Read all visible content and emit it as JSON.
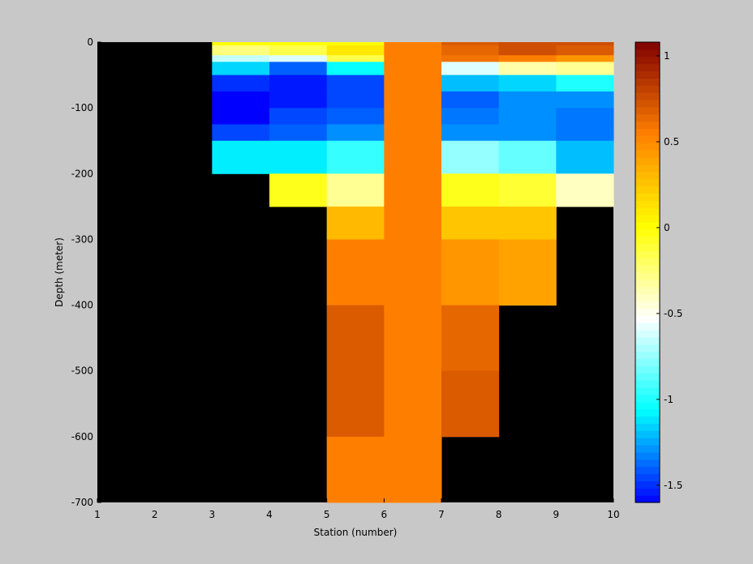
{
  "chart_data": {
    "type": "heatmap",
    "xlabel": "Station (number)",
    "ylabel": "Depth (meter)",
    "xlim": [
      1,
      10
    ],
    "ylim": [
      -700,
      0
    ],
    "x_ticks": [
      1,
      2,
      3,
      4,
      5,
      6,
      7,
      8,
      9,
      10
    ],
    "y_ticks": [
      0,
      -100,
      -200,
      -300,
      -400,
      -500,
      -600,
      -700
    ],
    "background": "#000000",
    "colorbar": {
      "range": [
        -1.6,
        1.08
      ],
      "ticks": [
        1,
        0.5,
        0,
        -0.5,
        -1,
        -1.5
      ],
      "colormap": [
        "#0000ff",
        "#00ffff",
        "#ffffff",
        "#ffff00",
        "#ff8000",
        "#800000"
      ]
    },
    "cells": [
      {
        "x0": 3,
        "x1": 4,
        "y0": 0,
        "y1": -5,
        "value": 0
      },
      {
        "x0": 3,
        "x1": 4,
        "y0": -5,
        "y1": -20,
        "value": -0.25
      },
      {
        "x0": 3,
        "x1": 4,
        "y0": -20,
        "y1": -30,
        "value": -0.65
      },
      {
        "x0": 3,
        "x1": 4,
        "y0": -30,
        "y1": -50,
        "value": -1.15
      },
      {
        "x0": 3,
        "x1": 4,
        "y0": -50,
        "y1": -75,
        "value": -1.5
      },
      {
        "x0": 3,
        "x1": 4,
        "y0": -75,
        "y1": -100,
        "value": -1.6
      },
      {
        "x0": 3,
        "x1": 4,
        "y0": -100,
        "y1": -125,
        "value": -1.6
      },
      {
        "x0": 3,
        "x1": 4,
        "y0": -125,
        "y1": -150,
        "value": -1.45
      },
      {
        "x0": 3,
        "x1": 4,
        "y0": -150,
        "y1": -200,
        "value": -1.1
      },
      {
        "x0": 4,
        "x1": 5,
        "y0": 0,
        "y1": -5,
        "value": 0
      },
      {
        "x0": 4,
        "x1": 5,
        "y0": -5,
        "y1": -20,
        "value": -0.15
      },
      {
        "x0": 4,
        "x1": 5,
        "y0": -20,
        "y1": -30,
        "value": -0.6
      },
      {
        "x0": 4,
        "x1": 5,
        "y0": -30,
        "y1": -50,
        "value": -1.4
      },
      {
        "x0": 4,
        "x1": 5,
        "y0": -50,
        "y1": -75,
        "value": -1.55
      },
      {
        "x0": 4,
        "x1": 5,
        "y0": -75,
        "y1": -100,
        "value": -1.55
      },
      {
        "x0": 4,
        "x1": 5,
        "y0": -100,
        "y1": -125,
        "value": -1.45
      },
      {
        "x0": 4,
        "x1": 5,
        "y0": -125,
        "y1": -150,
        "value": -1.4
      },
      {
        "x0": 4,
        "x1": 5,
        "y0": -150,
        "y1": -200,
        "value": -1.1
      },
      {
        "x0": 4,
        "x1": 5,
        "y0": -200,
        "y1": -250,
        "value": -0.05
      },
      {
        "x0": 5,
        "x1": 6,
        "y0": 0,
        "y1": -5,
        "value": 0
      },
      {
        "x0": 5,
        "x1": 6,
        "y0": -5,
        "y1": -20,
        "value": 0.1
      },
      {
        "x0": 5,
        "x1": 6,
        "y0": -20,
        "y1": -30,
        "value": -0.15
      },
      {
        "x0": 5,
        "x1": 6,
        "y0": -30,
        "y1": -50,
        "value": -1.05
      },
      {
        "x0": 5,
        "x1": 6,
        "y0": -50,
        "y1": -75,
        "value": -1.45
      },
      {
        "x0": 5,
        "x1": 6,
        "y0": -75,
        "y1": -100,
        "value": -1.45
      },
      {
        "x0": 5,
        "x1": 6,
        "y0": -100,
        "y1": -125,
        "value": -1.4
      },
      {
        "x0": 5,
        "x1": 6,
        "y0": -125,
        "y1": -150,
        "value": -1.3
      },
      {
        "x0": 5,
        "x1": 6,
        "y0": -150,
        "y1": -200,
        "value": -0.95
      },
      {
        "x0": 5,
        "x1": 6,
        "y0": -200,
        "y1": -250,
        "value": -0.3
      },
      {
        "x0": 5,
        "x1": 6,
        "y0": -250,
        "y1": -300,
        "value": 0.3
      },
      {
        "x0": 5,
        "x1": 6,
        "y0": -300,
        "y1": -400,
        "value": 0.55
      },
      {
        "x0": 5,
        "x1": 6,
        "y0": -400,
        "y1": -600,
        "value": 0.7
      },
      {
        "x0": 5,
        "x1": 6,
        "y0": -600,
        "y1": -700,
        "value": 0.55
      },
      {
        "x0": 6,
        "x1": 7,
        "y0": 0,
        "y1": -700,
        "value": 0.55
      },
      {
        "x0": 7,
        "x1": 8,
        "y0": 0,
        "y1": -5,
        "value": 0.7
      },
      {
        "x0": 7,
        "x1": 8,
        "y0": -5,
        "y1": -20,
        "value": 0.65
      },
      {
        "x0": 7,
        "x1": 8,
        "y0": -20,
        "y1": -30,
        "value": 0.6
      },
      {
        "x0": 7,
        "x1": 8,
        "y0": -30,
        "y1": -50,
        "value": -0.6
      },
      {
        "x0": 7,
        "x1": 8,
        "y0": -50,
        "y1": -75,
        "value": -1.2
      },
      {
        "x0": 7,
        "x1": 8,
        "y0": -75,
        "y1": -100,
        "value": -1.4
      },
      {
        "x0": 7,
        "x1": 8,
        "y0": -100,
        "y1": -125,
        "value": -1.35
      },
      {
        "x0": 7,
        "x1": 8,
        "y0": -125,
        "y1": -150,
        "value": -1.3
      },
      {
        "x0": 7,
        "x1": 8,
        "y0": -150,
        "y1": -200,
        "value": -0.75
      },
      {
        "x0": 7,
        "x1": 8,
        "y0": -200,
        "y1": -250,
        "value": -0.05
      },
      {
        "x0": 7,
        "x1": 8,
        "y0": -250,
        "y1": -300,
        "value": 0.25
      },
      {
        "x0": 7,
        "x1": 8,
        "y0": -300,
        "y1": -400,
        "value": 0.45
      },
      {
        "x0": 7,
        "x1": 8,
        "y0": -400,
        "y1": -500,
        "value": 0.65
      },
      {
        "x0": 7,
        "x1": 8,
        "y0": -500,
        "y1": -600,
        "value": 0.7
      },
      {
        "x0": 8,
        "x1": 9,
        "y0": 0,
        "y1": -5,
        "value": 0.75
      },
      {
        "x0": 8,
        "x1": 9,
        "y0": -5,
        "y1": -20,
        "value": 0.75
      },
      {
        "x0": 8,
        "x1": 9,
        "y0": -20,
        "y1": -30,
        "value": 0.55
      },
      {
        "x0": 8,
        "x1": 9,
        "y0": -30,
        "y1": -50,
        "value": -0.35
      },
      {
        "x0": 8,
        "x1": 9,
        "y0": -50,
        "y1": -75,
        "value": -1.15
      },
      {
        "x0": 8,
        "x1": 9,
        "y0": -75,
        "y1": -100,
        "value": -1.3
      },
      {
        "x0": 8,
        "x1": 9,
        "y0": -100,
        "y1": -125,
        "value": -1.3
      },
      {
        "x0": 8,
        "x1": 9,
        "y0": -125,
        "y1": -150,
        "value": -1.3
      },
      {
        "x0": 8,
        "x1": 9,
        "y0": -150,
        "y1": -200,
        "value": -0.85
      },
      {
        "x0": 8,
        "x1": 9,
        "y0": -200,
        "y1": -250,
        "value": -0.1
      },
      {
        "x0": 8,
        "x1": 9,
        "y0": -250,
        "y1": -300,
        "value": 0.25
      },
      {
        "x0": 8,
        "x1": 9,
        "y0": -300,
        "y1": -400,
        "value": 0.4
      },
      {
        "x0": 9,
        "x1": 10,
        "y0": 0,
        "y1": -5,
        "value": 0.75
      },
      {
        "x0": 9,
        "x1": 10,
        "y0": -5,
        "y1": -20,
        "value": 0.7
      },
      {
        "x0": 9,
        "x1": 10,
        "y0": -20,
        "y1": -30,
        "value": 0.45
      },
      {
        "x0": 9,
        "x1": 10,
        "y0": -30,
        "y1": -50,
        "value": -0.3
      },
      {
        "x0": 9,
        "x1": 10,
        "y0": -50,
        "y1": -75,
        "value": -1.0
      },
      {
        "x0": 9,
        "x1": 10,
        "y0": -75,
        "y1": -100,
        "value": -1.3
      },
      {
        "x0": 9,
        "x1": 10,
        "y0": -100,
        "y1": -125,
        "value": -1.35
      },
      {
        "x0": 9,
        "x1": 10,
        "y0": -125,
        "y1": -150,
        "value": -1.35
      },
      {
        "x0": 9,
        "x1": 10,
        "y0": -150,
        "y1": -200,
        "value": -1.2
      },
      {
        "x0": 9,
        "x1": 10,
        "y0": -200,
        "y1": -250,
        "value": -0.4
      }
    ]
  }
}
